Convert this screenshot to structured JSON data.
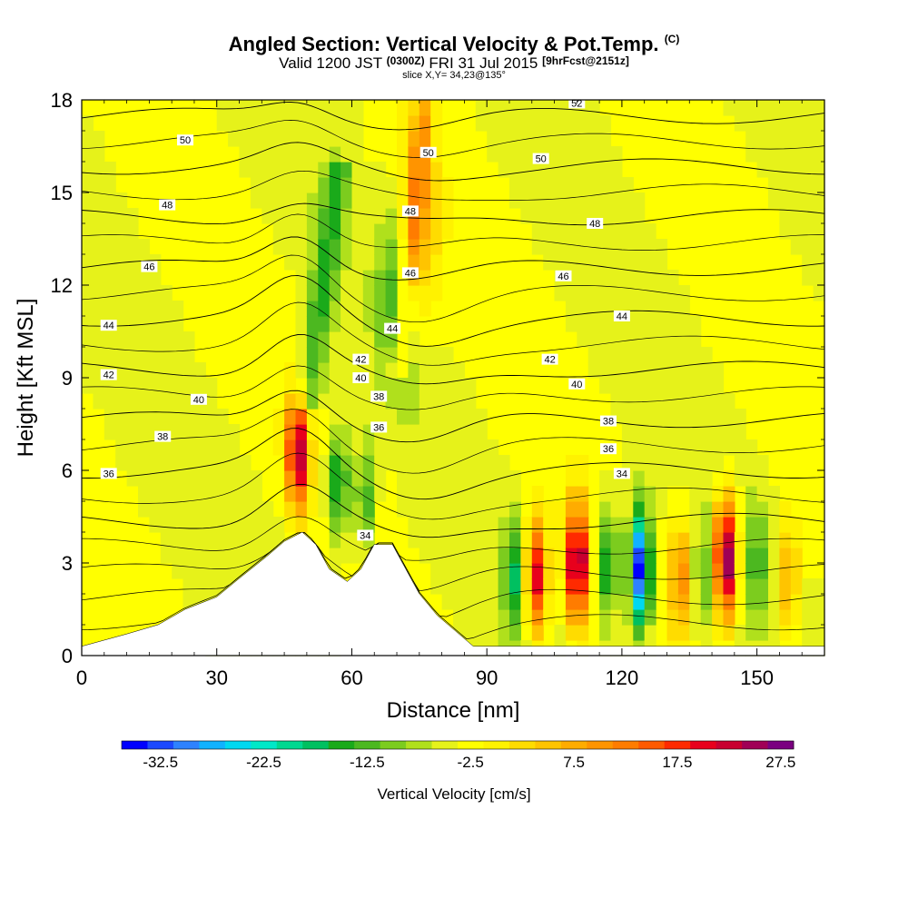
{
  "header": {
    "title": "Angled Section: Vertical Velocity & Pot.Temp.",
    "title_mark": "(C)",
    "valid_prefix": "Valid 1200 JST",
    "valid_utc": "(0300Z)",
    "valid_date": "FRI 31 Jul 2015",
    "forecast_tag": "[9hrFcst@2151z]",
    "slice": "slice X,Y= 34,23@135°"
  },
  "chart_data": {
    "type": "heatmap",
    "xlabel": "Distance [nm]",
    "ylabel": "Height [Kft MSL]",
    "xlim": [
      0,
      165
    ],
    "ylim": [
      0,
      18
    ],
    "xticks": [
      "0",
      "30",
      "60",
      "90",
      "120",
      "150"
    ],
    "yticks": [
      "0",
      "3",
      "6",
      "9",
      "12",
      "15",
      "18"
    ],
    "terrain": [
      [
        0,
        0.3
      ],
      [
        10,
        0.7
      ],
      [
        17,
        1.0
      ],
      [
        23,
        1.5
      ],
      [
        30,
        1.9
      ],
      [
        35,
        2.5
      ],
      [
        41,
        3.2
      ],
      [
        45,
        3.7
      ],
      [
        49,
        4.0
      ],
      [
        52,
        3.6
      ],
      [
        55,
        2.8
      ],
      [
        59,
        2.4
      ],
      [
        62,
        2.8
      ],
      [
        65,
        3.6
      ],
      [
        69,
        3.6
      ],
      [
        72,
        2.8
      ],
      [
        75,
        2.0
      ],
      [
        79,
        1.3
      ],
      [
        83,
        0.8
      ],
      [
        87,
        0.3
      ],
      [
        165,
        0.3
      ]
    ],
    "colorbar": {
      "label": "Vertical Velocity [cm/s]",
      "tick_labels": [
        "-32.5",
        "-22.5",
        "-12.5",
        "-2.5",
        "7.5",
        "17.5",
        "27.5"
      ],
      "levels_from": -35,
      "level_step": 2.5,
      "colors": [
        "#0000ff",
        "#1c48ff",
        "#2e82ff",
        "#10b2ff",
        "#00d8f0",
        "#00e8c8",
        "#00d890",
        "#00c060",
        "#1aaa1a",
        "#4cb820",
        "#7ccc1e",
        "#b0e01c",
        "#e6f21a",
        "#ffff00",
        "#fff200",
        "#ffdc00",
        "#ffc400",
        "#ffac00",
        "#ff9400",
        "#ff7c00",
        "#ff5a00",
        "#ff2a00",
        "#e8001c",
        "#c80030",
        "#a00056",
        "#7a0080"
      ]
    },
    "vertical_velocity_features": [
      {
        "x": 48,
        "y": 6.5,
        "peak": 30
      },
      {
        "x": 57,
        "y": 5.5,
        "peak": -15
      },
      {
        "x": 63,
        "y": 5.0,
        "peak": -10
      },
      {
        "x": 70,
        "y": 11.5,
        "peak": -10
      },
      {
        "x": 75,
        "y": 14.0,
        "peak": 10
      },
      {
        "x": 96,
        "y": 2.5,
        "peak": -12
      },
      {
        "x": 101,
        "y": 2.5,
        "peak": 25
      },
      {
        "x": 110,
        "y": 3.0,
        "peak": 32
      },
      {
        "x": 117,
        "y": 3.0,
        "peak": -15
      },
      {
        "x": 124,
        "y": 2.8,
        "peak": -32
      },
      {
        "x": 133,
        "y": 2.5,
        "peak": 15
      },
      {
        "x": 138,
        "y": 2.5,
        "peak": -8
      },
      {
        "x": 143,
        "y": 3.2,
        "peak": 35
      },
      {
        "x": 150,
        "y": 3.0,
        "peak": -8
      },
      {
        "x": 157,
        "y": 2.5,
        "peak": 12
      }
    ],
    "isentropes": [
      {
        "theta": 34,
        "label_points": [
          [
            63,
            3.9
          ],
          [
            120,
            5.9
          ]
        ]
      },
      {
        "theta": 36,
        "label_points": [
          [
            6,
            5.9
          ],
          [
            66,
            7.4
          ],
          [
            117,
            6.7
          ]
        ]
      },
      {
        "theta": 38,
        "label_points": [
          [
            18,
            7.1
          ],
          [
            66,
            8.4
          ],
          [
            117,
            7.6
          ]
        ]
      },
      {
        "theta": 40,
        "label_points": [
          [
            26,
            8.3
          ],
          [
            62,
            9.0
          ],
          [
            110,
            8.8
          ]
        ]
      },
      {
        "theta": 42,
        "label_points": [
          [
            6,
            9.1
          ],
          [
            62,
            9.6
          ],
          [
            104,
            9.6
          ]
        ]
      },
      {
        "theta": 44,
        "label_points": [
          [
            6,
            10.7
          ],
          [
            69,
            10.6
          ],
          [
            120,
            11.0
          ]
        ]
      },
      {
        "theta": 46,
        "label_points": [
          [
            15,
            12.6
          ],
          [
            73,
            12.4
          ],
          [
            107,
            12.3
          ]
        ]
      },
      {
        "theta": 48,
        "label_points": [
          [
            19,
            14.6
          ],
          [
            73,
            14.4
          ],
          [
            114,
            14.0
          ]
        ]
      },
      {
        "theta": 50,
        "label_points": [
          [
            23,
            16.7
          ],
          [
            77,
            16.3
          ],
          [
            102,
            16.1
          ]
        ]
      },
      {
        "theta": 52,
        "label_points": [
          [
            110,
            17.9
          ]
        ]
      }
    ]
  }
}
